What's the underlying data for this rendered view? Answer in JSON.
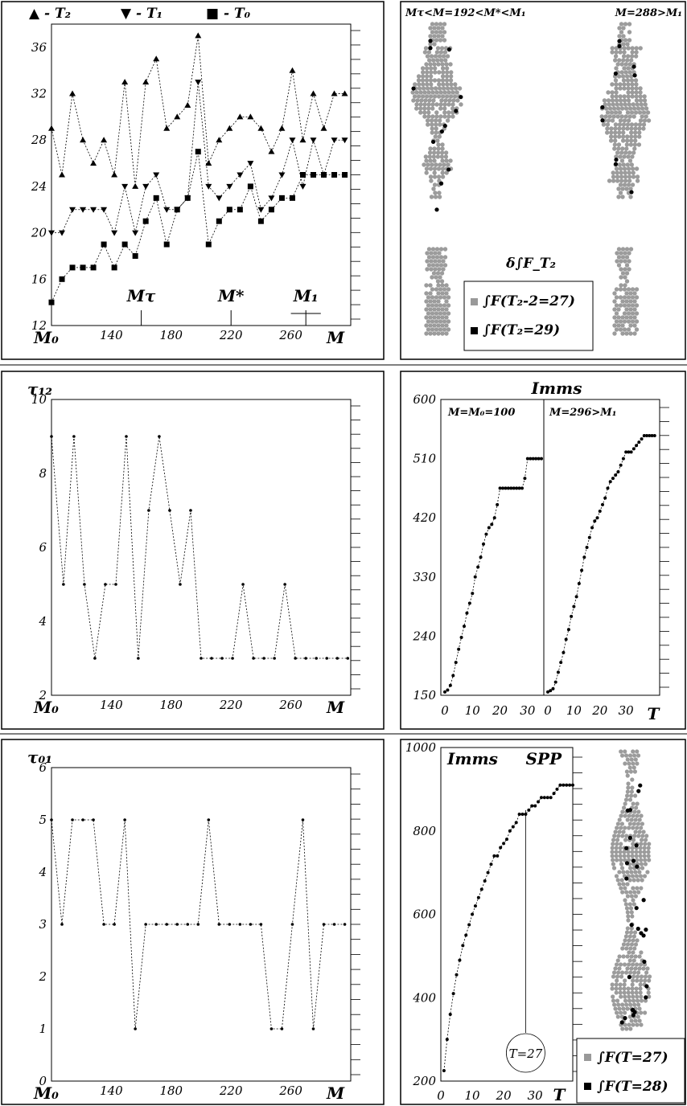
{
  "chart_data": [
    {
      "id": "p1",
      "type": "line",
      "title": "",
      "legend": {
        "position": "top",
        "entries": [
          {
            "marker": "triangle-up",
            "label": "▲ - T₂"
          },
          {
            "marker": "triangle-down",
            "label": "▼ - T₁"
          },
          {
            "marker": "square",
            "label": "■ - T₀"
          }
        ]
      },
      "x": [
        100,
        107,
        114,
        121,
        128,
        135,
        142,
        149,
        156,
        163,
        170,
        177,
        184,
        191,
        198,
        205,
        212,
        219,
        226,
        233,
        240,
        247,
        254,
        261,
        268,
        275,
        282,
        289,
        296
      ],
      "series": [
        {
          "marker": "triangle-up",
          "values": [
            29,
            25,
            32,
            28,
            26,
            28,
            25,
            33,
            24,
            33,
            35,
            29,
            30,
            31,
            37,
            26,
            28,
            29,
            30,
            30,
            29,
            27,
            29,
            34,
            28,
            32,
            29,
            32,
            32
          ]
        },
        {
          "marker": "triangle-down",
          "values": [
            20,
            20,
            22,
            22,
            22,
            22,
            20,
            24,
            20,
            24,
            25,
            22,
            22,
            23,
            33,
            24,
            23,
            24,
            25,
            26,
            22,
            23,
            25,
            28,
            24,
            28,
            25,
            28,
            28
          ]
        },
        {
          "marker": "square",
          "values": [
            14,
            16,
            17,
            17,
            17,
            19,
            17,
            19,
            18,
            21,
            23,
            19,
            22,
            23,
            27,
            19,
            21,
            22,
            22,
            24,
            21,
            22,
            23,
            23,
            25,
            25,
            25,
            25,
            25
          ]
        }
      ],
      "xlim": [
        100,
        300
      ],
      "ylim": [
        12,
        38
      ],
      "y_ticks": [
        "12",
        "16",
        "20",
        "24",
        "28",
        "32",
        "36"
      ],
      "x_ticks": [
        "140",
        "180",
        "220",
        "260"
      ],
      "x_min_label": "M₀",
      "xlabel": "M",
      "annotations": [
        {
          "label": "Mτ",
          "at": 160
        },
        {
          "label": "M*",
          "at": 220
        },
        {
          "label": "M₁",
          "at": 270
        }
      ]
    },
    {
      "id": "p2",
      "type": "line",
      "title": "",
      "ylabel": "τ₁₂",
      "x": [
        100,
        108,
        115,
        122,
        129,
        136,
        143,
        150,
        158,
        165,
        172,
        179,
        186,
        193,
        200,
        207,
        214,
        221,
        228,
        235,
        242,
        249,
        256,
        263,
        270,
        277,
        284,
        291,
        298
      ],
      "values": [
        9,
        5,
        9,
        5,
        3,
        5,
        5,
        9,
        3,
        7,
        9,
        7,
        5,
        7,
        3,
        3,
        3,
        3,
        5,
        3,
        3,
        3,
        5,
        3,
        3,
        3,
        3,
        3,
        3
      ],
      "xlim": [
        100,
        300
      ],
      "ylim": [
        2,
        10
      ],
      "y_ticks": [
        "2",
        "4",
        "6",
        "8",
        "10"
      ],
      "x_ticks": [
        "140",
        "180",
        "220",
        "260"
      ],
      "x_min_label": "M₀",
      "xlabel": "M"
    },
    {
      "id": "p3",
      "type": "line",
      "title": "",
      "ylabel": "τ₀₁",
      "x": [
        100,
        107,
        114,
        121,
        128,
        135,
        142,
        149,
        156,
        163,
        170,
        177,
        184,
        191,
        198,
        205,
        212,
        219,
        226,
        233,
        240,
        247,
        254,
        261,
        268,
        275,
        282,
        289,
        296
      ],
      "values": [
        5,
        3,
        5,
        5,
        5,
        3,
        3,
        5,
        1,
        3,
        3,
        3,
        3,
        3,
        3,
        5,
        3,
        3,
        3,
        3,
        3,
        1,
        1,
        3,
        5,
        1,
        3,
        3,
        3
      ],
      "xlim": [
        100,
        300
      ],
      "ylim": [
        0,
        6
      ],
      "y_ticks": [
        "0",
        "1",
        "2",
        "3",
        "4",
        "5",
        "6"
      ],
      "x_ticks": [
        "140",
        "180",
        "220",
        "260"
      ],
      "x_min_label": "M₀",
      "xlabel": "M"
    },
    {
      "id": "p4",
      "type": "scatter",
      "title": "",
      "headers": [
        "Mτ<M=192<M*<M₁",
        "M=288>M₁"
      ],
      "legend": {
        "position": "bottom",
        "entries": [
          {
            "color": "#999999",
            "label": "∫F(T₂-2=27)"
          },
          {
            "color": "#000000",
            "label": "∫F(T₂=29)"
          }
        ]
      },
      "annotation": "δ∫F_T₂"
    },
    {
      "id": "p5",
      "type": "scatter",
      "title": "",
      "ylabel": "Imms",
      "subpanels": [
        {
          "label": "M=M₀=100",
          "x": [
            0,
            1,
            2,
            3,
            4,
            5,
            6,
            7,
            8,
            9,
            10,
            11,
            12,
            13,
            14,
            15,
            16,
            17,
            18,
            19,
            20,
            21,
            22,
            23,
            24,
            25,
            26,
            27,
            28,
            29,
            30,
            31,
            32,
            33,
            34,
            35
          ],
          "values": [
            155,
            158,
            165,
            180,
            200,
            220,
            238,
            255,
            275,
            290,
            305,
            330,
            345,
            360,
            380,
            395,
            405,
            410,
            420,
            440,
            465,
            465,
            465,
            465,
            465,
            465,
            465,
            465,
            465,
            480,
            510,
            510,
            510,
            510,
            510,
            510
          ]
        },
        {
          "label": "M=296>M₁",
          "x": [
            0,
            1,
            2,
            3,
            4,
            5,
            6,
            7,
            8,
            9,
            10,
            11,
            12,
            13,
            14,
            15,
            16,
            17,
            18,
            19,
            20,
            21,
            22,
            23,
            24,
            25,
            26,
            27,
            28,
            29,
            30,
            31,
            32,
            33,
            34,
            35,
            36,
            37,
            38,
            39,
            40,
            41
          ],
          "values": [
            155,
            157,
            160,
            170,
            185,
            200,
            215,
            235,
            250,
            270,
            285,
            300,
            320,
            340,
            360,
            375,
            390,
            405,
            415,
            420,
            430,
            440,
            450,
            465,
            475,
            480,
            485,
            490,
            500,
            510,
            520,
            520,
            520,
            525,
            530,
            535,
            540,
            545,
            545,
            545,
            545,
            545
          ]
        }
      ],
      "ylim": [
        150,
        600
      ],
      "y_ticks": [
        "150",
        "240",
        "330",
        "420",
        "510",
        "600"
      ],
      "x_ticks_left": [
        "0",
        "10",
        "20",
        "30"
      ],
      "x_ticks_right": [
        "0",
        "10",
        "20",
        "30"
      ],
      "xlabel": "T"
    },
    {
      "id": "p6",
      "type": "scatter",
      "title": "",
      "ylabel": "Imms",
      "x": [
        1,
        2,
        3,
        4,
        5,
        6,
        7,
        8,
        9,
        10,
        11,
        12,
        13,
        14,
        15,
        16,
        17,
        18,
        19,
        20,
        21,
        22,
        23,
        24,
        25,
        26,
        27,
        28,
        29,
        30,
        31,
        32,
        33,
        34,
        35,
        36,
        37,
        38,
        39,
        40,
        41,
        42
      ],
      "values": [
        225,
        300,
        360,
        410,
        455,
        490,
        525,
        550,
        575,
        600,
        620,
        640,
        660,
        680,
        700,
        720,
        740,
        740,
        760,
        770,
        780,
        800,
        810,
        820,
        840,
        840,
        840,
        850,
        860,
        860,
        870,
        880,
        880,
        880,
        880,
        890,
        900,
        910,
        910,
        910,
        910,
        910
      ],
      "xlim": [
        0,
        42
      ],
      "ylim": [
        200,
        1000
      ],
      "y_ticks": [
        "200",
        "400",
        "600",
        "800",
        "1000"
      ],
      "x_ticks": [
        "0",
        "10",
        "20",
        "30"
      ],
      "xlabel": "T",
      "annotation": "T=27",
      "spp_label": "SPP",
      "legend": {
        "position": "bottom-right",
        "entries": [
          {
            "color": "#999999",
            "label": "∫F(T=27)"
          },
          {
            "color": "#000000",
            "label": "∫F(T=28)"
          }
        ]
      }
    }
  ]
}
